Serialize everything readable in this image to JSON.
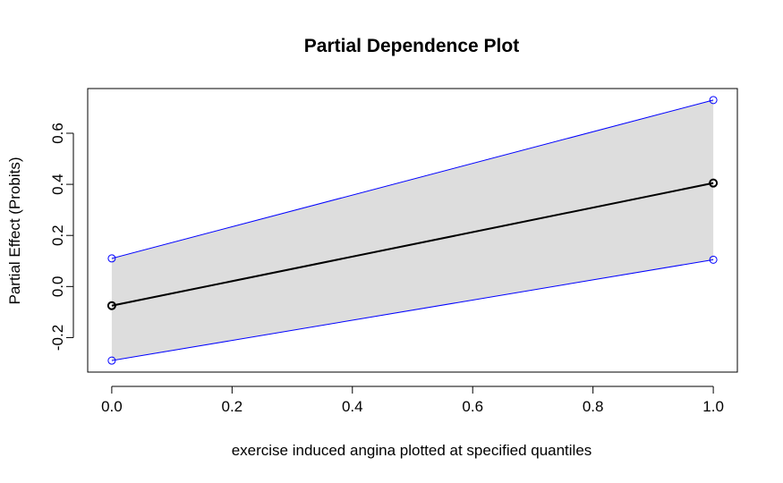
{
  "chart_data": {
    "type": "line",
    "title": "Partial Dependence Plot",
    "xlabel": "exercise induced angina plotted at specified quantiles",
    "ylabel": "Partial Effect (Probits)",
    "x": [
      0.0,
      1.0
    ],
    "series": [
      {
        "values": [
          -0.075,
          0.405
        ],
        "color": "#000000",
        "marker": "circle"
      }
    ],
    "band": {
      "lower": [
        -0.29,
        0.105
      ],
      "upper": [
        0.11,
        0.73
      ],
      "line_color": "#0000ff",
      "fill_color": "#dddddd",
      "marker": "circle"
    },
    "xlim": [
      -0.04,
      1.04
    ],
    "ylim": [
      -0.335,
      0.775
    ],
    "xticks": [
      0.0,
      0.2,
      0.4,
      0.6,
      0.8,
      1.0
    ],
    "xtick_labels": [
      "0.0",
      "0.2",
      "0.4",
      "0.6",
      "0.8",
      "1.0"
    ],
    "yticks": [
      -0.2,
      0.0,
      0.2,
      0.4,
      0.6
    ],
    "ytick_labels": [
      "-0.2",
      "0.0",
      "0.2",
      "0.4",
      "0.6"
    ],
    "grid": false
  }
}
